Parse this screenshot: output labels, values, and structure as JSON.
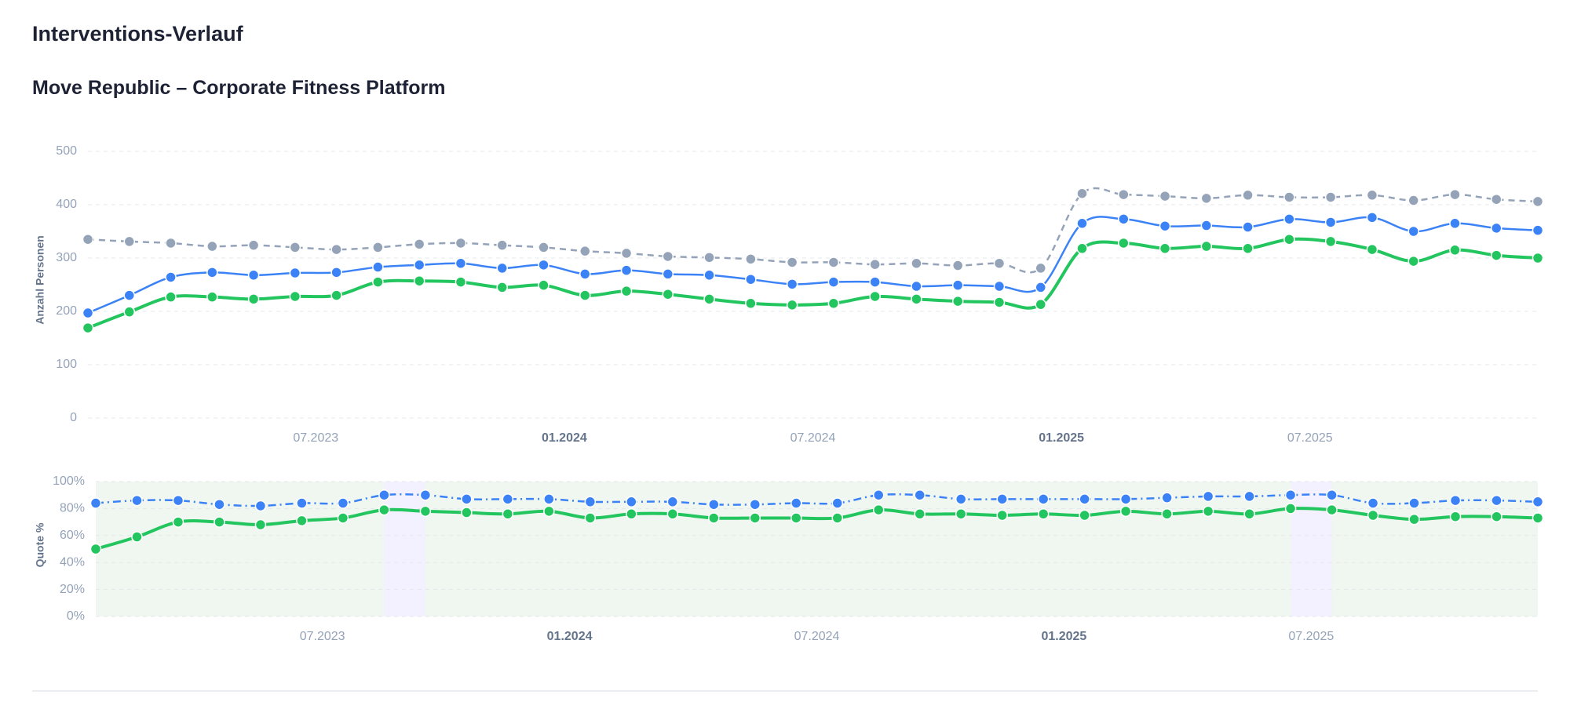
{
  "header": {
    "title": "Interventions-Verlauf",
    "subtitle": "Move Republic – Corporate Fitness Platform"
  },
  "chart_data": [
    {
      "type": "line",
      "ylabel": "Anzahl Personen",
      "grid": true,
      "x": [
        "2023-01",
        "2023-02",
        "2023-03",
        "2023-04",
        "2023-05",
        "2023-06",
        "2023-07",
        "2023-08",
        "2023-09",
        "2023-10",
        "2023-11",
        "2023-12",
        "2024-01",
        "2024-02",
        "2024-03",
        "2024-04",
        "2024-05",
        "2024-06",
        "2024-07",
        "2024-08",
        "2024-09",
        "2024-10",
        "2024-11",
        "2024-12",
        "2025-01",
        "2025-02",
        "2025-03",
        "2025-04",
        "2025-05",
        "2025-06",
        "2025-07",
        "2025-08",
        "2025-09",
        "2025-10",
        "2025-11",
        "2025-12"
      ],
      "xticks": [
        {
          "value": "2023-07",
          "label": "07.2023"
        },
        {
          "value": "2024-01",
          "label": "01.2024"
        },
        {
          "value": "2024-07",
          "label": "07.2024"
        },
        {
          "value": "2025-01",
          "label": "01.2025"
        },
        {
          "value": "2025-07",
          "label": "07.2025"
        }
      ],
      "ylim": [
        0,
        500
      ],
      "yticks": [
        0,
        100,
        200,
        300,
        400,
        500
      ],
      "series": [
        {
          "color": "#94a3b8",
          "dash": "dashed",
          "width": 2.5,
          "values": [
            335,
            331,
            328,
            322,
            324,
            320,
            316,
            320,
            326,
            328,
            324,
            320,
            313,
            309,
            303,
            301,
            298,
            292,
            292,
            288,
            290,
            286,
            290,
            281,
            421,
            419,
            416,
            412,
            418,
            414,
            414,
            418,
            408,
            419,
            410,
            406
          ]
        },
        {
          "color": "#3b82f6",
          "dash": "solid",
          "width": 2.5,
          "values": [
            197,
            230,
            264,
            273,
            268,
            272,
            273,
            283,
            287,
            290,
            281,
            287,
            270,
            277,
            270,
            268,
            260,
            251,
            255,
            255,
            247,
            249,
            247,
            245,
            365,
            373,
            360,
            361,
            358,
            373,
            367,
            376,
            350,
            365,
            356,
            352
          ]
        },
        {
          "color": "#22c55e",
          "dash": "solid",
          "width": 4,
          "values": [
            169,
            199,
            227,
            227,
            223,
            228,
            230,
            255,
            257,
            255,
            245,
            249,
            230,
            238,
            232,
            223,
            215,
            212,
            215,
            228,
            223,
            219,
            217,
            213,
            318,
            328,
            318,
            322,
            318,
            335,
            331,
            316,
            294,
            315,
            305,
            300
          ]
        }
      ]
    },
    {
      "type": "line",
      "ylabel": "Quote %",
      "grid": true,
      "band_color": "#f0f7f0",
      "highlight_color": "#f3f0ff",
      "highlights": [
        {
          "from": "2023-08",
          "to": "2023-09"
        },
        {
          "from": "2025-06",
          "to": "2025-07"
        }
      ],
      "x": [
        "2023-01",
        "2023-02",
        "2023-03",
        "2023-04",
        "2023-05",
        "2023-06",
        "2023-07",
        "2023-08",
        "2023-09",
        "2023-10",
        "2023-11",
        "2023-12",
        "2024-01",
        "2024-02",
        "2024-03",
        "2024-04",
        "2024-05",
        "2024-06",
        "2024-07",
        "2024-08",
        "2024-09",
        "2024-10",
        "2024-11",
        "2024-12",
        "2025-01",
        "2025-02",
        "2025-03",
        "2025-04",
        "2025-05",
        "2025-06",
        "2025-07",
        "2025-08",
        "2025-09",
        "2025-10",
        "2025-11",
        "2025-12"
      ],
      "xticks": [
        {
          "value": "2023-07",
          "label": "07.2023"
        },
        {
          "value": "2024-01",
          "label": "01.2024"
        },
        {
          "value": "2024-07",
          "label": "07.2024"
        },
        {
          "value": "2025-01",
          "label": "01.2025"
        },
        {
          "value": "2025-07",
          "label": "07.2025"
        }
      ],
      "ylim": [
        0,
        100
      ],
      "yticks": [
        {
          "value": 0,
          "label": "0%"
        },
        {
          "value": 20,
          "label": "20%"
        },
        {
          "value": 40,
          "label": "40%"
        },
        {
          "value": 60,
          "label": "60%"
        },
        {
          "value": 80,
          "label": "80%"
        },
        {
          "value": 100,
          "label": "100%"
        }
      ],
      "series": [
        {
          "color": "#3b82f6",
          "dash": "dashdot",
          "width": 2.5,
          "values": [
            84,
            86,
            86,
            83,
            82,
            84,
            84,
            90,
            90,
            87,
            87,
            87,
            85,
            85,
            85,
            83,
            83,
            84,
            84,
            90,
            90,
            87,
            87,
            87,
            87,
            87,
            88,
            89,
            89,
            90,
            90,
            84,
            84,
            86,
            86,
            85
          ]
        },
        {
          "color": "#22c55e",
          "dash": "solid",
          "width": 4,
          "values": [
            50,
            59,
            70,
            70,
            68,
            71,
            73,
            79,
            78,
            77,
            76,
            78,
            73,
            76,
            76,
            73,
            73,
            73,
            73,
            79,
            76,
            76,
            75,
            76,
            75,
            78,
            76,
            78,
            76,
            80,
            79,
            75,
            72,
            74,
            74,
            73
          ]
        }
      ]
    }
  ]
}
